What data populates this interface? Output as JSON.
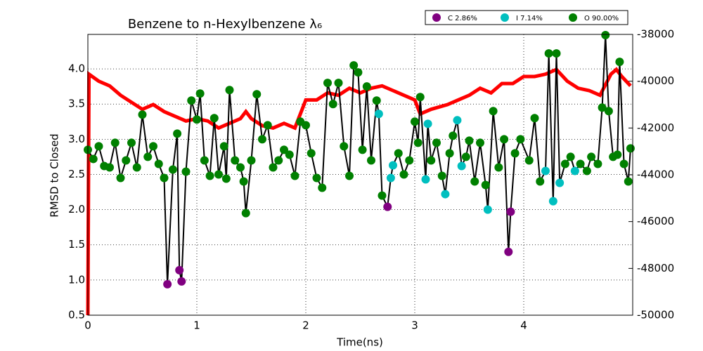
{
  "chart_data": {
    "type": "line",
    "title": "Benzene to n-Hexylbenzene λ₆",
    "xlabel": "Time(ns)",
    "ylabel": "RMSD to Closed",
    "xlim": [
      0,
      5
    ],
    "xticks": [
      0,
      1,
      2,
      3,
      4
    ],
    "ylim": [
      0.5,
      4.49
    ],
    "yticks": [
      0.5,
      {
        "value": 1,
        "label": "1.0"
      },
      1.5,
      {
        "value": 2,
        "label": "2.0"
      },
      2.5,
      {
        "value": 3,
        "label": "3.0"
      },
      3.5,
      {
        "value": 4,
        "label": "4.0"
      }
    ],
    "y2lim": [
      -50000,
      -38000
    ],
    "y2ticks": [
      -50000,
      -48000,
      -46000,
      -44000,
      -42000,
      -40000,
      -38000
    ],
    "grid": true,
    "legend": "upper right",
    "series": [
      {
        "type": "line",
        "axis": "y2",
        "color": "#ff0000",
        "x": [
          0,
          0.01,
          0.1,
          0.2,
          0.3,
          0.4,
          0.5,
          0.6,
          0.7,
          0.8,
          0.9,
          1,
          1.1,
          1.2,
          1.3,
          1.4,
          1.45,
          1.5,
          1.6,
          1.7,
          1.8,
          1.9,
          2,
          2.1,
          2.2,
          2.3,
          2.4,
          2.5,
          2.6,
          2.7,
          2.8,
          2.9,
          3,
          3.05,
          3.15,
          3.3,
          3.4,
          3.5,
          3.6,
          3.7,
          3.8,
          3.9,
          4,
          4.1,
          4.2,
          4.3,
          4.4,
          4.5,
          4.6,
          4.7,
          4.8,
          4.85,
          4.9,
          4.98
        ],
        "values": [
          -50000,
          -39700,
          -40000,
          -40200,
          -40600,
          -40900,
          -41200,
          -41000,
          -41300,
          -41500,
          -41700,
          -41600,
          -41700,
          -42000,
          -41800,
          -41600,
          -41300,
          -41600,
          -41900,
          -42000,
          -41800,
          -42000,
          -40800,
          -40800,
          -40500,
          -40600,
          -40300,
          -40500,
          -40300,
          -40200,
          -40400,
          -40600,
          -40800,
          -41400,
          -41200,
          -41000,
          -40800,
          -40600,
          -40300,
          -40500,
          -40100,
          -40100,
          -39800,
          -39800,
          -39700,
          -39500,
          -40000,
          -40300,
          -40400,
          -40600,
          -39700,
          -39500,
          -39800,
          -40200
        ]
      },
      {
        "type": "line",
        "color": "#000000",
        "x": [
          0,
          0.05,
          0.1,
          0.15,
          0.2,
          0.25,
          0.3,
          0.35,
          0.4,
          0.45,
          0.5,
          0.55,
          0.6,
          0.65,
          0.7,
          0.73,
          0.78,
          0.82,
          0.84,
          0.86,
          0.9,
          0.95,
          1,
          1.03,
          1.07,
          1.12,
          1.16,
          1.2,
          1.25,
          1.27,
          1.3,
          1.35,
          1.4,
          1.43,
          1.45,
          1.5,
          1.55,
          1.6,
          1.65,
          1.7,
          1.75,
          1.8,
          1.85,
          1.9,
          1.95,
          2,
          2.05,
          2.1,
          2.15,
          2.2,
          2.25,
          2.3,
          2.35,
          2.4,
          2.44,
          2.48,
          2.52,
          2.56,
          2.6,
          2.65,
          2.67,
          2.7,
          2.75,
          2.78,
          2.8,
          2.85,
          2.9,
          2.95,
          3,
          3.03,
          3.05,
          3.1,
          3.12,
          3.15,
          3.2,
          3.25,
          3.28,
          3.32,
          3.35,
          3.39,
          3.43,
          3.47,
          3.5,
          3.55,
          3.6,
          3.65,
          3.67,
          3.72,
          3.77,
          3.82,
          3.86,
          3.88,
          3.92,
          3.97,
          4.05,
          4.1,
          4.15,
          4.2,
          4.23,
          4.27,
          4.3,
          4.33,
          4.38,
          4.43,
          4.47,
          4.52,
          4.58,
          4.62,
          4.68,
          4.72,
          4.75,
          4.78,
          4.82,
          4.86,
          4.88,
          4.92,
          4.96,
          4.98
        ],
        "values": [
          2.85,
          2.72,
          2.9,
          2.62,
          2.6,
          2.95,
          2.45,
          2.7,
          2.95,
          2.6,
          3.35,
          2.75,
          2.9,
          2.65,
          2.45,
          0.94,
          2.57,
          3.08,
          1.14,
          0.98,
          2.54,
          3.55,
          3.28,
          3.65,
          2.7,
          2.48,
          3.3,
          2.5,
          2.9,
          2.44,
          3.7,
          2.7,
          2.6,
          2.4,
          1.95,
          2.7,
          3.64,
          3,
          3.2,
          2.6,
          2.7,
          2.85,
          2.78,
          2.48,
          3.25,
          3.2,
          2.8,
          2.45,
          2.31,
          3.8,
          3.5,
          3.8,
          2.9,
          2.48,
          4.05,
          3.95,
          2.85,
          3.75,
          2.7,
          3.55,
          3.36,
          2.2,
          2.04,
          2.45,
          2.63,
          2.8,
          2.5,
          2.7,
          3.25,
          2.95,
          3.6,
          2.43,
          3.22,
          2.7,
          2.95,
          2.48,
          2.22,
          2.8,
          3.05,
          3.27,
          2.62,
          2.75,
          2.98,
          2.4,
          2.95,
          2.35,
          2,
          3.4,
          2.6,
          3,
          1.4,
          1.97,
          2.8,
          3,
          2.7,
          3.3,
          2.4,
          2.55,
          4.22,
          2.12,
          4.22,
          2.38,
          2.65,
          2.75,
          2.55,
          2.65,
          2.55,
          2.75,
          2.65,
          3.45,
          4.48,
          3.4,
          2.75,
          2.78,
          4.1,
          2.65,
          2.4,
          2.87
        ]
      },
      {
        "type": "scatter",
        "name": "C 2.86%",
        "color": "#800080",
        "x": [
          0.73,
          0.84,
          0.86,
          2.75,
          3.86,
          3.88
        ],
        "values": [
          0.94,
          1.14,
          0.98,
          2.04,
          1.4,
          1.97
        ]
      },
      {
        "type": "scatter",
        "name": "I 7.14%",
        "color": "#00bfbf",
        "x": [
          2.67,
          2.78,
          2.8,
          3.1,
          3.12,
          3.28,
          3.39,
          3.43,
          3.67,
          4.2,
          4.27,
          4.33,
          4.47
        ],
        "values": [
          3.36,
          2.45,
          2.63,
          2.43,
          3.22,
          2.22,
          3.27,
          2.62,
          2,
          2.55,
          2.12,
          2.38,
          2.55
        ]
      },
      {
        "type": "scatter",
        "name": "O 90.00%",
        "color": "#008000",
        "x": [
          0,
          0.05,
          0.1,
          0.15,
          0.2,
          0.25,
          0.3,
          0.35,
          0.4,
          0.45,
          0.5,
          0.55,
          0.6,
          0.65,
          0.7,
          0.78,
          0.82,
          0.9,
          0.95,
          1,
          1.03,
          1.07,
          1.12,
          1.16,
          1.2,
          1.25,
          1.27,
          1.3,
          1.35,
          1.4,
          1.43,
          1.45,
          1.5,
          1.55,
          1.6,
          1.65,
          1.7,
          1.75,
          1.8,
          1.85,
          1.9,
          1.95,
          2,
          2.05,
          2.1,
          2.15,
          2.2,
          2.25,
          2.3,
          2.35,
          2.4,
          2.44,
          2.48,
          2.52,
          2.56,
          2.6,
          2.65,
          2.7,
          2.85,
          2.9,
          2.95,
          3,
          3.03,
          3.05,
          3.15,
          3.2,
          3.25,
          3.32,
          3.35,
          3.47,
          3.5,
          3.55,
          3.6,
          3.65,
          3.72,
          3.77,
          3.82,
          3.92,
          3.97,
          4.05,
          4.1,
          4.15,
          4.23,
          4.3,
          4.38,
          4.43,
          4.52,
          4.58,
          4.62,
          4.68,
          4.72,
          4.75,
          4.78,
          4.82,
          4.86,
          4.88,
          4.92,
          4.96,
          4.98
        ],
        "values": [
          2.85,
          2.72,
          2.9,
          2.62,
          2.6,
          2.95,
          2.45,
          2.7,
          2.95,
          2.6,
          3.35,
          2.75,
          2.9,
          2.65,
          2.45,
          2.57,
          3.08,
          2.54,
          3.55,
          3.28,
          3.65,
          2.7,
          2.48,
          3.3,
          2.5,
          2.9,
          2.44,
          3.7,
          2.7,
          2.6,
          2.4,
          1.95,
          2.7,
          3.64,
          3,
          3.2,
          2.6,
          2.7,
          2.85,
          2.78,
          2.48,
          3.25,
          3.2,
          2.8,
          2.45,
          2.31,
          3.8,
          3.5,
          3.8,
          2.9,
          2.48,
          4.05,
          3.95,
          2.85,
          3.75,
          2.7,
          3.55,
          2.2,
          2.8,
          2.5,
          2.7,
          3.25,
          2.95,
          3.6,
          2.7,
          2.95,
          2.48,
          2.8,
          3.05,
          2.75,
          2.98,
          2.4,
          2.95,
          2.35,
          3.4,
          2.6,
          3,
          2.8,
          3,
          2.7,
          3.3,
          2.4,
          4.22,
          4.22,
          2.65,
          2.75,
          2.65,
          2.55,
          2.75,
          2.65,
          3.45,
          4.48,
          3.4,
          2.75,
          2.78,
          4.1,
          2.65,
          2.4,
          2.87
        ]
      }
    ]
  }
}
